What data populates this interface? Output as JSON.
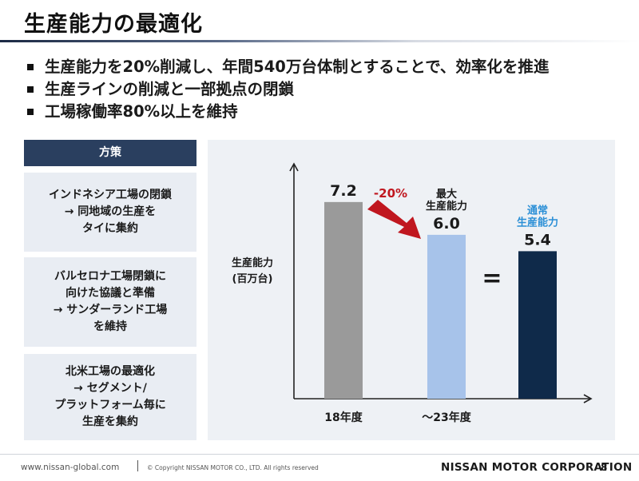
{
  "title": "生産能力の最適化",
  "bullets": [
    "生産能力を20%削減し、年間540万台体制とすることで、効率化を推進",
    "生産ラインの削減と一部拠点の閉鎖",
    "工場稼働率80%以上を維持"
  ],
  "measures": {
    "header": "方策",
    "items": [
      "インドネシア工場の閉鎖\n→ 同地域の生産を\nタイに集約",
      "バルセロナ工場閉鎖に\n向けた協議と準備\n→ サンダーランド工場\nを維持",
      "北米工場の最適化\n→ セグメント/\nプラットフォーム毎に\n生産を集約"
    ]
  },
  "chart_data": {
    "type": "bar",
    "ylabel": "生産能力",
    "ylabel_unit": "(百万台)",
    "bars": [
      {
        "category": "18年度",
        "value": 7.2,
        "value_label": "7.2",
        "color": "#9a9a9a",
        "caption": ""
      },
      {
        "category": "～23年度",
        "value": 6.0,
        "value_label": "6.0",
        "color": "#a7c3ea",
        "caption": "最大\n生産能力"
      },
      {
        "category": "",
        "value": 5.4,
        "value_label": "5.4",
        "color": "#0f2a4a",
        "caption": "通常\n生産能力",
        "caption_color": "#2b8fd6"
      }
    ],
    "change_label": "-20%",
    "change_color": "#c0171f",
    "equals_symbol": "=",
    "ylim": [
      0,
      8.6
    ]
  },
  "footer": {
    "url": "www.nissan-global.com",
    "copyright": "© Copyright NISSAN MOTOR CO., LTD. All rights reserved",
    "corporation": "NISSAN MOTOR CORPORATION",
    "page": "8"
  }
}
